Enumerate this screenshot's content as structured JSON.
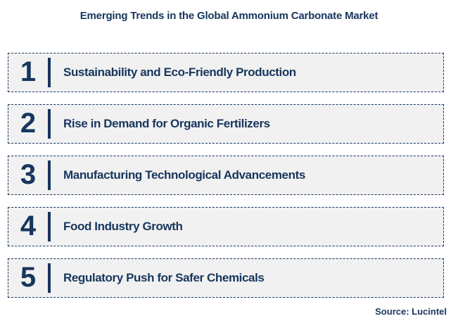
{
  "title": "Emerging Trends in the Global Ammonium Carbonate Market",
  "trends": [
    {
      "number": "1",
      "label": "Sustainability and Eco-Friendly Production"
    },
    {
      "number": "2",
      "label": "Rise in Demand for Organic Fertilizers"
    },
    {
      "number": "3",
      "label": "Manufacturing Technological Advancements"
    },
    {
      "number": "4",
      "label": "Food Industry Growth"
    },
    {
      "number": "5",
      "label": "Regulatory Push for Safer Chemicals"
    }
  ],
  "source": "Source: Lucintel",
  "colors": {
    "navy": "#17365D",
    "box_background": "#F1F1F1",
    "page_background": "#FFFFFF"
  }
}
